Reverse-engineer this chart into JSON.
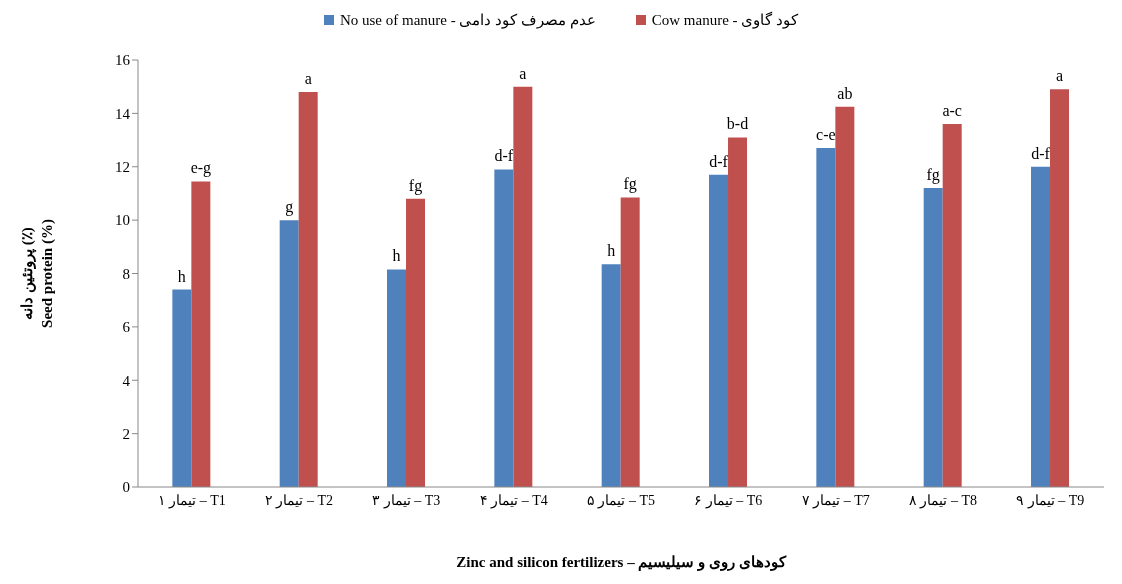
{
  "chart_data": {
    "type": "bar",
    "xlabel": "Zinc and silicon fertilizers – کودهای روی و سیلیسیم",
    "ylabel": "پروتئین دانه (٪)\nSeed protein (%)",
    "categories": [
      "تیمار ۱ – T1",
      "تیمار ۲ – T2",
      "تیمار ۳ – T3",
      "تیمار ۴ – T4",
      "تیمار ۵ – T5",
      "تیمار ۶ – T6",
      "تیمار ۷ – T7",
      "تیمار ۸ – T8",
      "تیمار ۹ – T9"
    ],
    "series": [
      {
        "name": "No use of manure - عدم مصرف کود دامی",
        "color": "#4f81bd",
        "values": [
          7.4,
          10.0,
          8.15,
          11.9,
          8.35,
          11.7,
          12.7,
          11.2,
          12.0
        ],
        "value_labels": [
          "h",
          "g",
          "h",
          "d-f",
          "h",
          "d-f",
          "c-e",
          "fg",
          "d-f"
        ]
      },
      {
        "name": "Cow manure - کود گاوی",
        "color": "#c0504d",
        "values": [
          11.45,
          14.8,
          10.8,
          15.0,
          10.85,
          13.1,
          14.25,
          13.6,
          14.9
        ],
        "value_labels": [
          "e-g",
          "a",
          "fg",
          "a",
          "fg",
          "b-d",
          "ab",
          "a-c",
          "a"
        ]
      }
    ],
    "ylim": [
      0,
      16
    ],
    "yticks": [
      0,
      2,
      4,
      6,
      8,
      10,
      12,
      14,
      16
    ],
    "grid": false,
    "legend": "top"
  }
}
